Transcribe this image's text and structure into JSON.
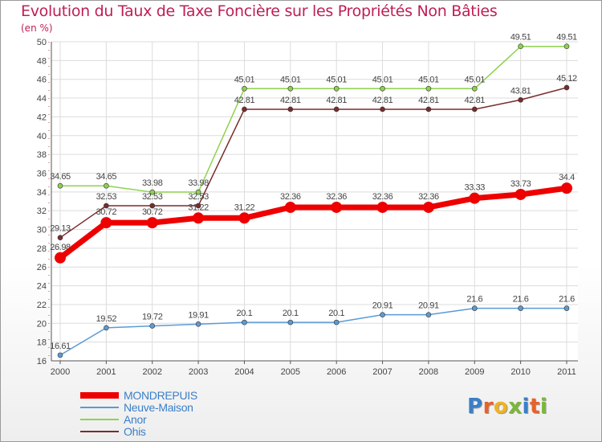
{
  "title": "Evolution du Taux de Taxe Foncière sur les Propriétés Non Bâties",
  "subtitle": "(en %)",
  "logo": {
    "text": "Proxiti",
    "colors": [
      "#3a7fc8",
      "#e8622a",
      "#f0b320",
      "#7ab83a",
      "#3a7fc8",
      "#e8622a",
      "#7ab83a"
    ]
  },
  "chart_data": {
    "type": "line",
    "title": "Evolution du Taux de Taxe Foncière sur les Propriétés Non Bâties",
    "ylabel": "(en %)",
    "ylim": [
      16,
      50
    ],
    "yticks": [
      16,
      18,
      20,
      22,
      24,
      26,
      28,
      30,
      32,
      34,
      36,
      38,
      40,
      42,
      44,
      46,
      48,
      50
    ],
    "categories": [
      "2000",
      "2001",
      "2002",
      "2003",
      "2004",
      "2005",
      "2006",
      "2007",
      "2008",
      "2009",
      "2010",
      "2011"
    ],
    "grid": true,
    "series": [
      {
        "name": "MONDREPUIS",
        "color": "#ee0000",
        "emphasis": true,
        "values": [
          26.98,
          30.72,
          30.72,
          31.22,
          31.22,
          32.36,
          32.36,
          32.36,
          32.36,
          33.33,
          33.73,
          34.4
        ],
        "labels": [
          "26.98",
          "30.72",
          "30.72",
          "31.22",
          "31.22",
          "32.36",
          "32.36",
          "32.36",
          "32.36",
          "33.33",
          "33.73",
          "34.4"
        ]
      },
      {
        "name": "Neuve-Maison",
        "color": "#5b9bd5",
        "emphasis": false,
        "values": [
          16.61,
          19.52,
          19.72,
          19.91,
          20.1,
          20.1,
          20.1,
          20.91,
          20.91,
          21.6,
          21.6,
          21.6
        ],
        "labels": [
          "16.61",
          "19.52",
          "19.72",
          "19.91",
          "20.1",
          "20.1",
          "20.1",
          "20.91",
          "20.91",
          "21.6",
          "21.6",
          "21.6"
        ]
      },
      {
        "name": "Anor",
        "color": "#8fd14f",
        "emphasis": false,
        "values": [
          34.65,
          34.65,
          33.98,
          33.98,
          45.01,
          45.01,
          45.01,
          45.01,
          45.01,
          45.01,
          49.51,
          49.51
        ],
        "labels": [
          "34.65",
          "34.65",
          "33.98",
          "33.98",
          "45.01",
          "45.01",
          "45.01",
          "45.01",
          "45.01",
          "45.01",
          "49.51",
          "49.51"
        ]
      },
      {
        "name": "Ohis",
        "color": "#7a2c2c",
        "emphasis": false,
        "values": [
          29.13,
          32.53,
          32.53,
          32.53,
          42.81,
          42.81,
          42.81,
          42.81,
          42.81,
          42.81,
          43.81,
          45.12
        ],
        "labels": [
          "29.13",
          "32.53",
          "32.53",
          "32.53",
          "42.81",
          "42.81",
          "42.81",
          "42.81",
          "42.81",
          "42.81",
          "43.81",
          "45.12"
        ]
      }
    ],
    "legend_position": "bottom-left"
  }
}
